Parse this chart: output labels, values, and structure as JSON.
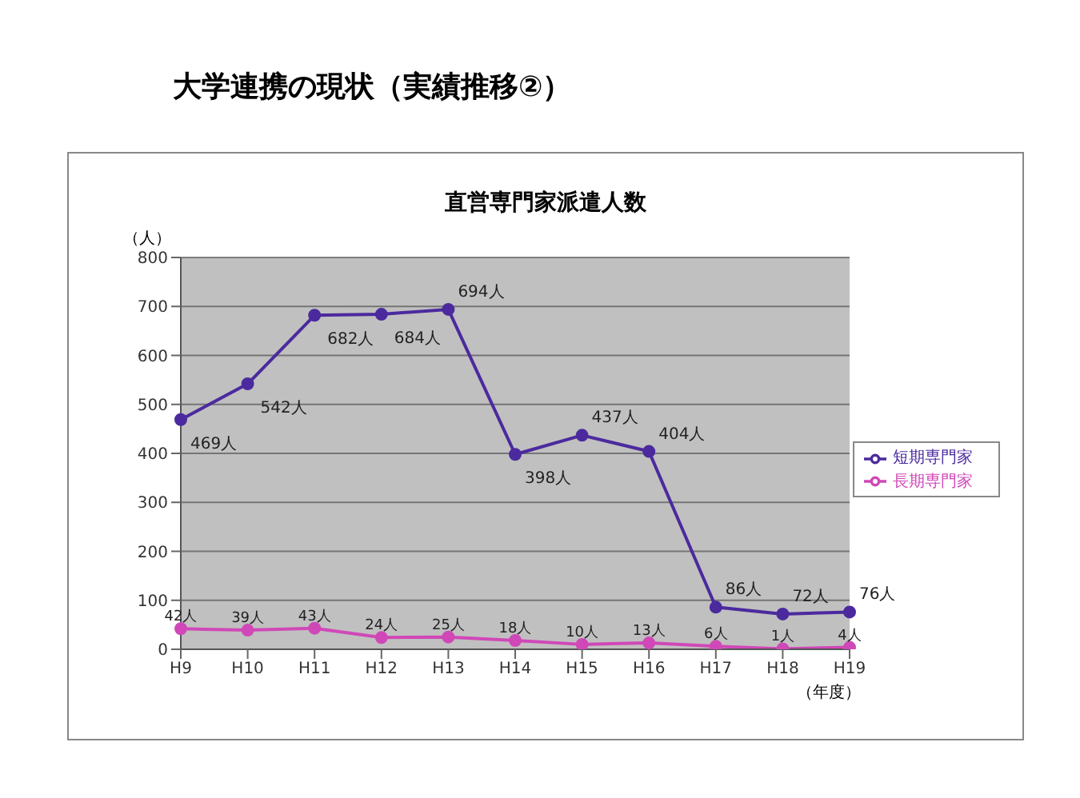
{
  "chart_data": {
    "type": "line",
    "title": "大学連携の現状（実績推移②）",
    "subtitle": "直営専門家派遣人数",
    "xlabel": "（年度）",
    "ylabel": "（人）",
    "categories": [
      "H9",
      "H10",
      "H11",
      "H12",
      "H13",
      "H14",
      "H15",
      "H16",
      "H17",
      "H18",
      "H19"
    ],
    "series": [
      {
        "name": "短期専門家",
        "color": "#4b2a9e",
        "values": [
          469,
          542,
          682,
          684,
          694,
          398,
          437,
          404,
          86,
          72,
          76
        ],
        "value_labels": [
          "469人",
          "542人",
          "682人",
          "684人",
          "694人",
          "398人",
          "437人",
          "404人",
          "86人",
          "72人",
          "76人"
        ]
      },
      {
        "name": "長期専門家",
        "color": "#d048b8",
        "values": [
          42,
          39,
          43,
          24,
          25,
          18,
          10,
          13,
          6,
          1,
          4
        ],
        "value_labels": [
          "42人",
          "39人",
          "43人",
          "24人",
          "25人",
          "18人",
          "10人",
          "13人",
          "6人",
          "1人",
          "4人"
        ]
      }
    ],
    "ylim": [
      0,
      800
    ],
    "yticks": [
      0,
      100,
      200,
      300,
      400,
      500,
      600,
      700,
      800
    ],
    "grid": "y",
    "legend": "right",
    "marker": "circle",
    "line_style": "solid"
  }
}
